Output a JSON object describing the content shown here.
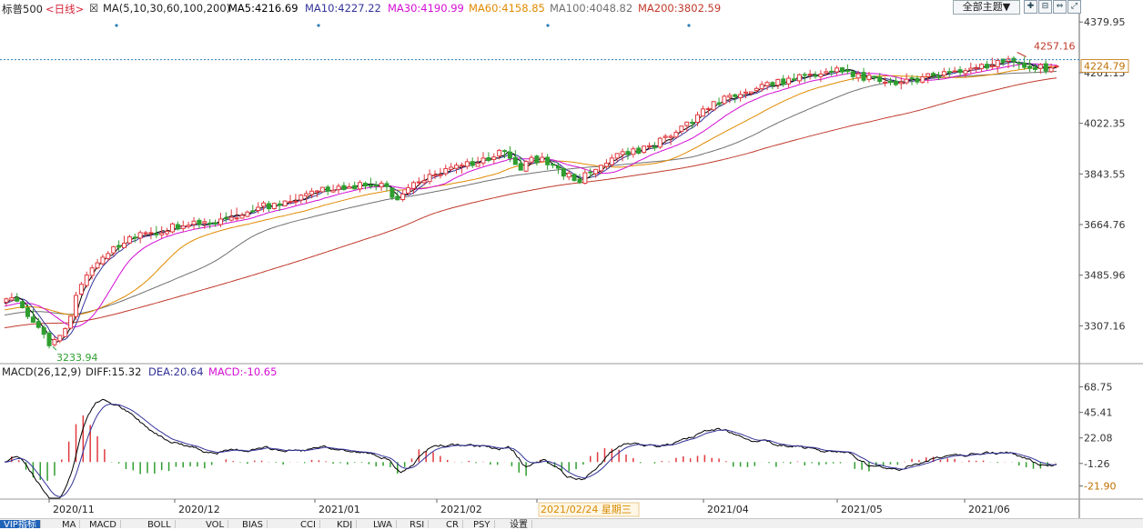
{
  "header": {
    "symbol": "标普500",
    "period": "<日线>",
    "ma_prefix": "MA(5,10,30,60,100,200)",
    "ma5": "MA5:4216.69",
    "ma10": "MA10:4227.22",
    "ma30": "MA30:4190.99",
    "ma60": "MA60:4158.85",
    "ma100": "MA100:4048.82",
    "ma200": "MA200:3802.59",
    "theme_button": "全部主题▼"
  },
  "macd_header": {
    "label": "MACD(26,12,9)",
    "diff": "DIFF:15.32",
    "dea": "DEA:20.64",
    "macd": "MACD:-10.65"
  },
  "colors": {
    "up": "#e0393e",
    "down": "#2f9e2f",
    "ma5": "#000000",
    "ma10": "#333399",
    "ma30": "#d40ed4",
    "ma60": "#e08a00",
    "ma100": "#707070",
    "ma200": "#c0392b",
    "price_axis": "#333333",
    "dashed": "#2c7fb8",
    "current_price_label": "#c07000",
    "cursor_date": "#d98a00"
  },
  "price_axis_ticks": [
    "4379.95",
    "4201.15",
    "4022.35",
    "3843.55",
    "3664.76",
    "3485.96",
    "3307.16"
  ],
  "macd_axis_ticks": [
    "68.75",
    "45.41",
    "22.08",
    "-1.26",
    "-21.90"
  ],
  "x_labels": [
    "2020/11",
    "2020/12",
    "2021/01",
    "2021/02",
    "2021/02/24 星期三",
    "2021/04",
    "2021/05",
    "2021/06"
  ],
  "annotations": {
    "high": "4257.16",
    "low": "3233.94",
    "current_price": "4224.79"
  },
  "tabs": [
    "VIP指标",
    "MA",
    "MACD",
    "BOLL",
    "VOL",
    "BIAS",
    "CCI",
    "KDJ",
    "LWA",
    "RSI",
    "CR",
    "PSY",
    "设置"
  ],
  "chart_data": {
    "type": "candlestick",
    "title": "标普500",
    "period": "日线",
    "y_range": [
      3180,
      4400
    ],
    "last_close": 4224.79,
    "high": 4257.16,
    "low": 3233.94,
    "price_path": [
      [
        0,
        3390
      ],
      [
        6,
        3420
      ],
      [
        12,
        3370
      ],
      [
        20,
        3300
      ],
      [
        26,
        3250
      ],
      [
        32,
        3265
      ],
      [
        36,
        3310
      ],
      [
        42,
        3430
      ],
      [
        50,
        3520
      ],
      [
        58,
        3560
      ],
      [
        66,
        3600
      ],
      [
        78,
        3630
      ],
      [
        90,
        3650
      ],
      [
        98,
        3660
      ],
      [
        112,
        3670
      ],
      [
        126,
        3690
      ],
      [
        140,
        3720
      ],
      [
        156,
        3740
      ],
      [
        168,
        3760
      ],
      [
        182,
        3790
      ],
      [
        196,
        3800
      ],
      [
        210,
        3810
      ],
      [
        220,
        3760
      ],
      [
        228,
        3790
      ],
      [
        238,
        3840
      ],
      [
        256,
        3870
      ],
      [
        270,
        3900
      ],
      [
        282,
        3920
      ],
      [
        290,
        3870
      ],
      [
        298,
        3900
      ],
      [
        306,
        3880
      ],
      [
        314,
        3840
      ],
      [
        322,
        3820
      ],
      [
        330,
        3850
      ],
      [
        342,
        3900
      ],
      [
        358,
        3930
      ],
      [
        376,
        3980
      ],
      [
        394,
        4080
      ],
      [
        414,
        4130
      ],
      [
        434,
        4170
      ],
      [
        452,
        4190
      ],
      [
        462,
        4200
      ],
      [
        472,
        4210
      ],
      [
        480,
        4190
      ],
      [
        488,
        4180
      ],
      [
        500,
        4170
      ],
      [
        512,
        4180
      ],
      [
        528,
        4200
      ],
      [
        546,
        4220
      ],
      [
        562,
        4240
      ],
      [
        574,
        4230
      ],
      [
        582,
        4215
      ],
      [
        589,
        4221
      ]
    ],
    "ma_series": [
      {
        "name": "MA5",
        "value": 4216.69
      },
      {
        "name": "MA10",
        "value": 4227.22
      },
      {
        "name": "MA30",
        "value": 4190.99
      },
      {
        "name": "MA60",
        "value": 4158.85
      },
      {
        "name": "MA100",
        "value": 4048.82
      },
      {
        "name": "MA200",
        "value": 3802.59
      }
    ],
    "macd": {
      "params": "26,12,9",
      "diff": 15.32,
      "dea": 20.64,
      "macd": -10.65,
      "y_range": [
        -33,
        75
      ]
    }
  }
}
